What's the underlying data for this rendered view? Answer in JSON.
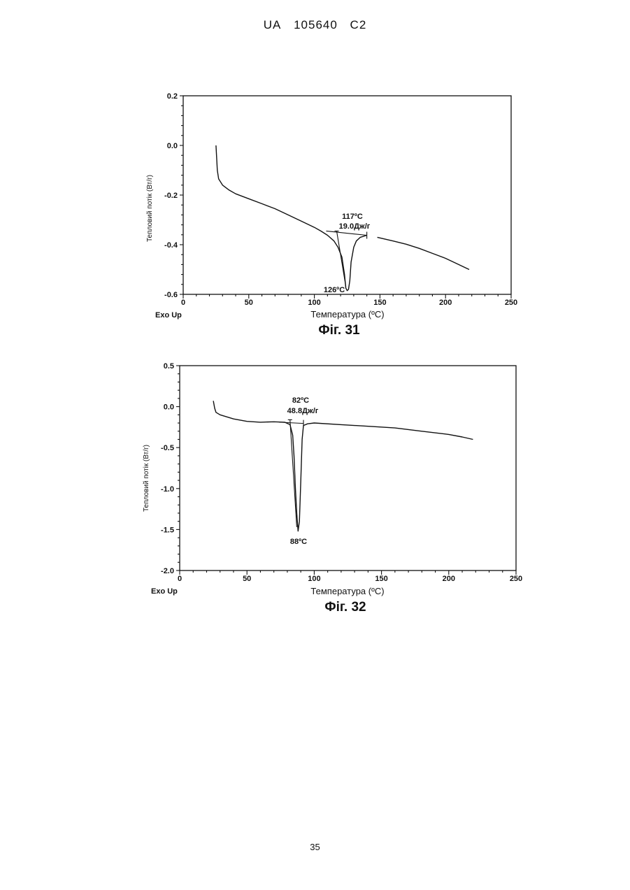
{
  "header": {
    "country": "UA",
    "number": "105640",
    "kind": "C2"
  },
  "page_number": "35",
  "chart_data": [
    {
      "type": "line",
      "caption": "Фіг. 31",
      "xlabel": "Температура (ºC)",
      "ylabel": "Тепловий потік (Вт/г)",
      "corner_label": "Exo Up",
      "xlim": [
        0,
        250
      ],
      "ylim": [
        -0.6,
        0.2
      ],
      "xticks": [
        "0",
        "50",
        "100",
        "150",
        "200",
        "250"
      ],
      "yticks": [
        "0.2",
        "0.0",
        "-0.2",
        "-0.4",
        "-0.6"
      ],
      "series": [
        {
          "points": [
            [
              25,
              0.0
            ],
            [
              26,
              -0.1
            ],
            [
              27,
              -0.135
            ],
            [
              30,
              -0.16
            ],
            [
              35,
              -0.18
            ],
            [
              40,
              -0.195
            ],
            [
              50,
              -0.215
            ],
            [
              60,
              -0.235
            ],
            [
              70,
              -0.255
            ],
            [
              80,
              -0.28
            ],
            [
              90,
              -0.305
            ],
            [
              100,
              -0.33
            ],
            [
              105,
              -0.345
            ],
            [
              110,
              -0.362
            ],
            [
              115,
              -0.385
            ],
            [
              118,
              -0.41
            ],
            [
              121,
              -0.45
            ],
            [
              123,
              -0.52
            ],
            [
              124,
              -0.575
            ],
            [
              125,
              -0.585
            ],
            [
              126,
              -0.58
            ],
            [
              127,
              -0.545
            ],
            [
              128,
              -0.47
            ],
            [
              130,
              -0.41
            ],
            [
              132,
              -0.385
            ],
            [
              135,
              -0.37
            ],
            [
              140,
              -0.362
            ]
          ]
        },
        {
          "points": [
            [
              148,
              -0.37
            ],
            [
              160,
              -0.385
            ],
            [
              170,
              -0.398
            ],
            [
              180,
              -0.415
            ],
            [
              190,
              -0.435
            ],
            [
              200,
              -0.455
            ],
            [
              210,
              -0.48
            ],
            [
              218,
              -0.5
            ]
          ]
        }
      ],
      "annotations": [
        {
          "onset": "117ºC",
          "enthalpy": "19.0Дж/г",
          "peak": "126ºC"
        }
      ]
    },
    {
      "type": "line",
      "caption": "Фіг. 32",
      "xlabel": "Температура (ºC)",
      "ylabel": "Тепловий потік (Вт/г)",
      "corner_label": "Exo Up",
      "xlim": [
        0,
        250
      ],
      "ylim": [
        -2.0,
        0.5
      ],
      "xticks": [
        "0",
        "50",
        "100",
        "150",
        "200",
        "250"
      ],
      "yticks": [
        "0.5",
        "0.0",
        "-0.5",
        "-1.0",
        "-1.5",
        "-2.0"
      ],
      "series": [
        {
          "points": [
            [
              25,
              0.07
            ],
            [
              26,
              -0.02
            ],
            [
              27,
              -0.07
            ],
            [
              30,
              -0.1
            ],
            [
              40,
              -0.15
            ],
            [
              50,
              -0.18
            ],
            [
              60,
              -0.19
            ],
            [
              70,
              -0.185
            ],
            [
              78,
              -0.19
            ],
            [
              82,
              -0.22
            ],
            [
              84,
              -0.35
            ],
            [
              85,
              -0.6
            ],
            [
              86,
              -1.0
            ],
            [
              87,
              -1.3
            ],
            [
              88,
              -1.52
            ],
            [
              89,
              -1.4
            ],
            [
              90,
              -0.9
            ],
            [
              91,
              -0.4
            ],
            [
              92,
              -0.23
            ],
            [
              95,
              -0.21
            ],
            [
              100,
              -0.2
            ],
            [
              120,
              -0.22
            ],
            [
              140,
              -0.24
            ],
            [
              160,
              -0.26
            ],
            [
              180,
              -0.3
            ],
            [
              200,
              -0.34
            ],
            [
              210,
              -0.37
            ],
            [
              218,
              -0.4
            ]
          ]
        }
      ],
      "annotations": [
        {
          "onset": "82ºC",
          "enthalpy": "48.8Дж/г",
          "peak": "88ºC"
        }
      ]
    }
  ]
}
